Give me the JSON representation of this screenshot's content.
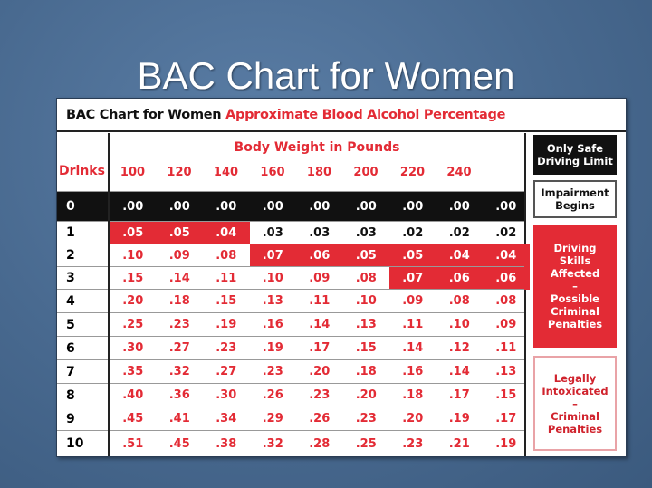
{
  "slide_title": "BAC Chart for Women",
  "header": {
    "title": "BAC Chart for Women",
    "subtitle": "Approximate Blood Alcohol Percentage"
  },
  "table": {
    "weight_label": "Body Weight in Pounds",
    "drinks_label": "Drinks",
    "weights": [
      "100",
      "120",
      "140",
      "160",
      "180",
      "200",
      "220",
      "240",
      ""
    ],
    "rows": [
      {
        "drinks": "0",
        "values": [
          ".00",
          ".00",
          ".00",
          ".00",
          ".00",
          ".00",
          ".00",
          ".00",
          ".00"
        ],
        "highlight": []
      },
      {
        "drinks": "1",
        "values": [
          ".05",
          ".05",
          ".04",
          ".03",
          ".03",
          ".03",
          ".02",
          ".02",
          ".02"
        ],
        "highlight": [
          0,
          1,
          2
        ]
      },
      {
        "drinks": "2",
        "values": [
          ".10",
          ".09",
          ".08",
          ".07",
          ".06",
          ".05",
          ".05",
          ".04",
          ".04"
        ],
        "highlight": [
          3,
          4,
          5,
          6,
          7,
          8
        ]
      },
      {
        "drinks": "3",
        "values": [
          ".15",
          ".14",
          ".11",
          ".10",
          ".09",
          ".08",
          ".07",
          ".06",
          ".06"
        ],
        "highlight": [
          6,
          7,
          8
        ]
      },
      {
        "drinks": "4",
        "values": [
          ".20",
          ".18",
          ".15",
          ".13",
          ".11",
          ".10",
          ".09",
          ".08",
          ".08"
        ],
        "highlight": []
      },
      {
        "drinks": "5",
        "values": [
          ".25",
          ".23",
          ".19",
          ".16",
          ".14",
          ".13",
          ".11",
          ".10",
          ".09"
        ],
        "highlight": []
      },
      {
        "drinks": "6",
        "values": [
          ".30",
          ".27",
          ".23",
          ".19",
          ".17",
          ".15",
          ".14",
          ".12",
          ".11"
        ],
        "highlight": []
      },
      {
        "drinks": "7",
        "values": [
          ".35",
          ".32",
          ".27",
          ".23",
          ".20",
          ".18",
          ".16",
          ".14",
          ".13"
        ],
        "highlight": []
      },
      {
        "drinks": "8",
        "values": [
          ".40",
          ".36",
          ".30",
          ".26",
          ".23",
          ".20",
          ".18",
          ".17",
          ".15"
        ],
        "highlight": []
      },
      {
        "drinks": "9",
        "values": [
          ".45",
          ".41",
          ".34",
          ".29",
          ".26",
          ".23",
          ".20",
          ".19",
          ".17"
        ],
        "highlight": []
      },
      {
        "drinks": "10",
        "values": [
          ".51",
          ".45",
          ".38",
          ".32",
          ".28",
          ".25",
          ".23",
          ".21",
          ".19"
        ],
        "highlight": []
      }
    ]
  },
  "legend": {
    "safe": "Only Safe Driving Limit",
    "impairment": "Impairment Begins",
    "affected": [
      "Driving",
      "Skills",
      "Affected",
      "–",
      "Possible",
      "Criminal",
      "Penalties"
    ],
    "intoxicated": [
      "Legally",
      "Intoxicated",
      "–",
      "Criminal",
      "Penalties"
    ]
  },
  "colors": {
    "red": "#e32b35",
    "black": "#111111",
    "slide_bg": "#48698f"
  }
}
